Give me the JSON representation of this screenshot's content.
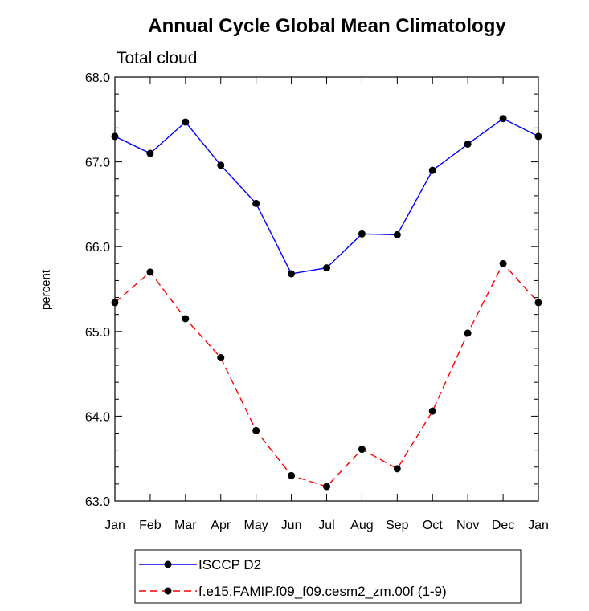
{
  "chart_data": {
    "type": "line",
    "title": "Annual Cycle Global Mean Climatology",
    "subtitle": "Total cloud",
    "xlabel": "",
    "ylabel": "percent",
    "categories": [
      "Jan",
      "Feb",
      "Mar",
      "Apr",
      "May",
      "Jun",
      "Jul",
      "Aug",
      "Sep",
      "Oct",
      "Nov",
      "Dec",
      "Jan"
    ],
    "ylim": [
      63.0,
      68.0
    ],
    "yticks": [
      "63.0",
      "64.0",
      "65.0",
      "66.0",
      "67.0",
      "68.0"
    ],
    "grid": false,
    "legend_position": "bottom",
    "series": [
      {
        "name": "ISCCP D2",
        "color": "#0000ff",
        "style": "solid",
        "values": [
          67.3,
          67.1,
          67.47,
          66.96,
          66.51,
          65.68,
          65.75,
          66.15,
          66.14,
          66.9,
          67.21,
          67.51,
          67.3
        ]
      },
      {
        "name": "f.e15.FAMIP.f09_f09.cesm2_zm.00f (1-9)",
        "color": "#ff0000",
        "style": "dashed",
        "values": [
          65.34,
          65.7,
          65.15,
          64.69,
          63.83,
          63.3,
          63.17,
          63.61,
          63.38,
          64.06,
          64.98,
          65.8,
          65.34
        ]
      }
    ]
  }
}
